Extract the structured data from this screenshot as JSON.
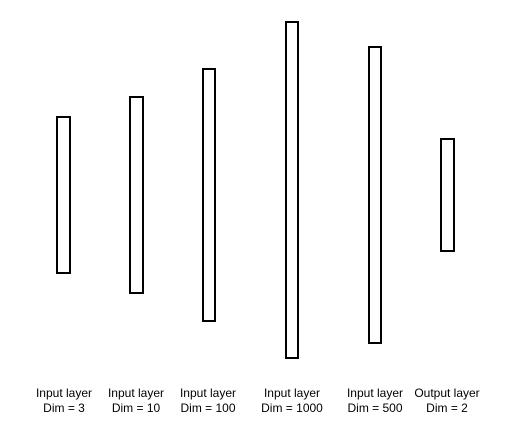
{
  "layers": [
    {
      "name": "Input layer",
      "dim_label": "Dim = 3",
      "dim": 3
    },
    {
      "name": "Input layer",
      "dim_label": "Dim = 10",
      "dim": 10
    },
    {
      "name": "Input layer",
      "dim_label": "Dim = 100",
      "dim": 100
    },
    {
      "name": "Input layer",
      "dim_label": "Dim = 1000",
      "dim": 1000
    },
    {
      "name": "Input layer",
      "dim_label": "Dim = 500",
      "dim": 500
    },
    {
      "name": "Output layer",
      "dim_label": "Dim = 2",
      "dim": 2
    }
  ]
}
